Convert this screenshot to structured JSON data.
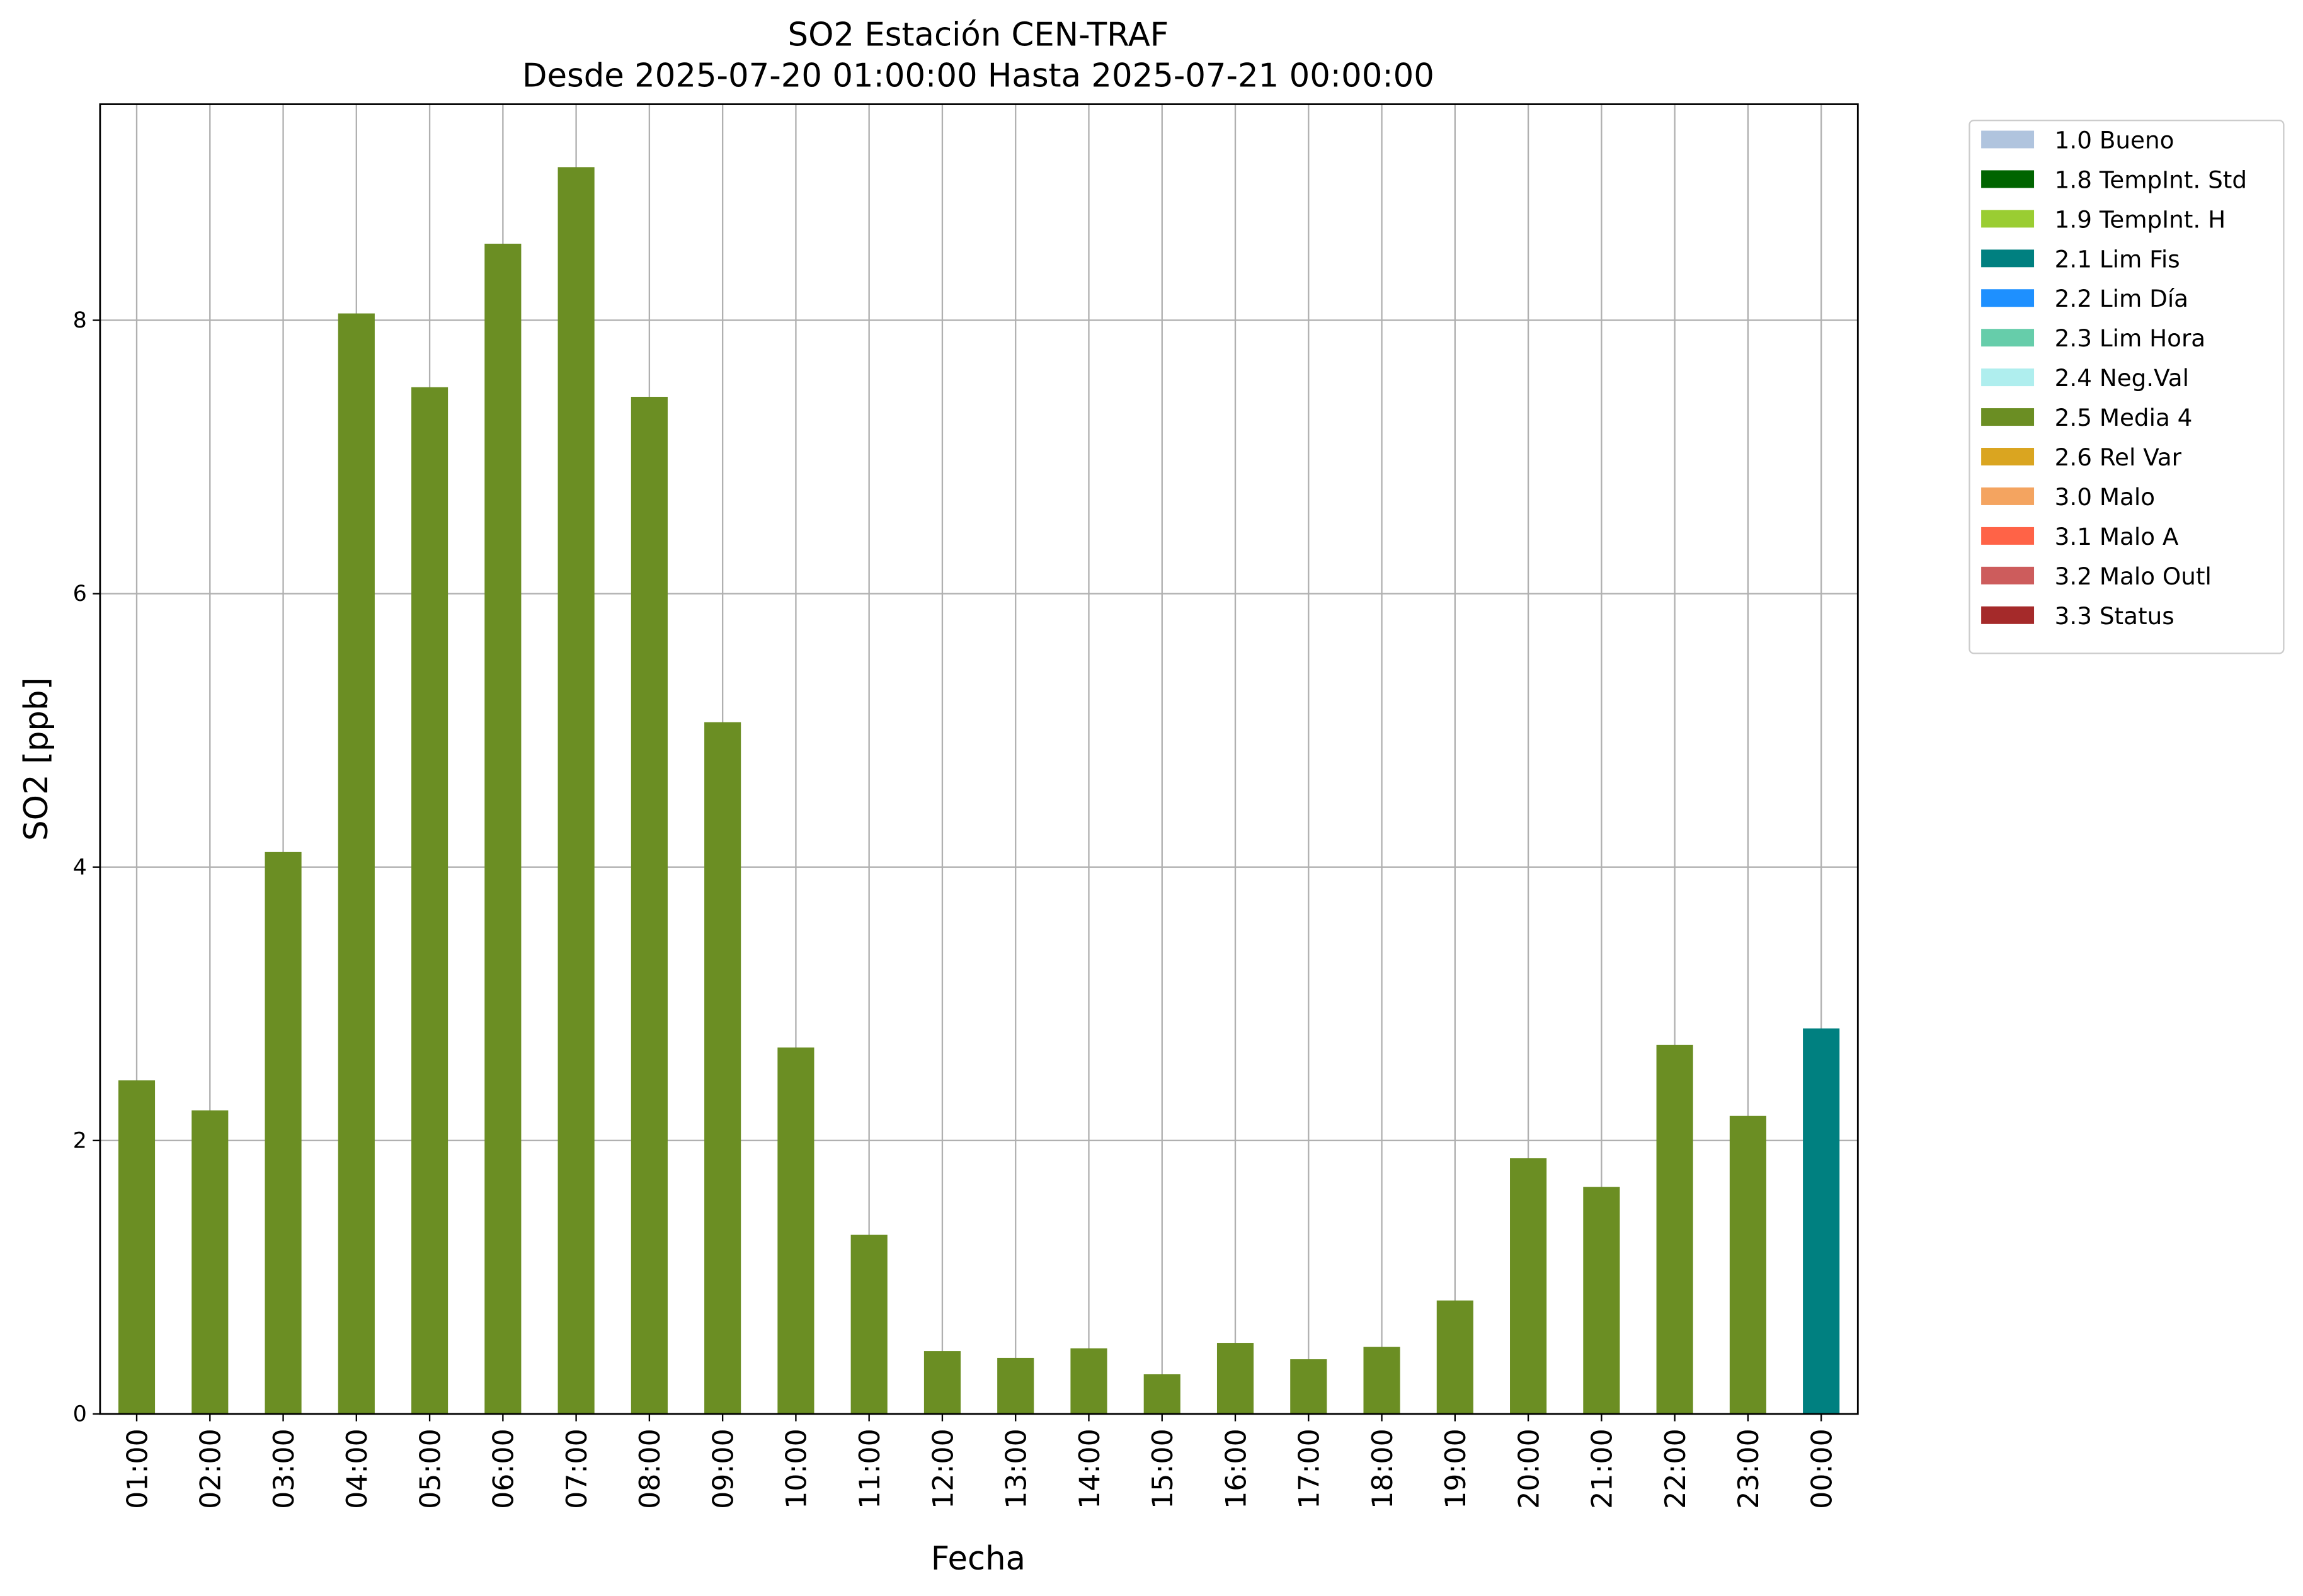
{
  "chart_data": {
    "type": "stacked_bar",
    "title": "SO2 Estación CEN-TRAF",
    "subtitle": "Desde 2025-07-20 01:00:00 Hasta 2025-07-21 00:00:00",
    "x_label": "Fecha",
    "y_label": "SO2 [ppb]",
    "categories": [
      "01:00",
      "02:00",
      "03:00",
      "04:00",
      "05:00",
      "06:00",
      "07:00",
      "08:00",
      "09:00",
      "10:00",
      "11:00",
      "12:00",
      "13:00",
      "14:00",
      "15:00",
      "16:00",
      "17:00",
      "18:00",
      "19:00",
      "20:00",
      "21:00",
      "22:00",
      "23:00",
      "00:00"
    ],
    "ylim": [
      0,
      9.58
    ],
    "yticks": [
      0,
      2,
      4,
      6,
      8
    ],
    "grid": true,
    "legend": "outside-right",
    "series": [
      {
        "name": "1.0 Bueno",
        "color": "#b0c4de",
        "values": [
          null,
          null,
          null,
          null,
          null,
          null,
          null,
          null,
          null,
          null,
          null,
          null,
          null,
          null,
          null,
          null,
          null,
          null,
          null,
          null,
          null,
          null,
          null,
          null
        ]
      },
      {
        "name": "1.8 TempInt. Std",
        "color": "#006400",
        "values": [
          null,
          null,
          null,
          null,
          null,
          null,
          null,
          null,
          null,
          null,
          null,
          null,
          null,
          null,
          null,
          null,
          null,
          null,
          null,
          null,
          null,
          null,
          null,
          null
        ]
      },
      {
        "name": "1.9 TempInt. H",
        "color": "#9acd32",
        "values": [
          null,
          null,
          null,
          null,
          null,
          null,
          null,
          null,
          null,
          null,
          null,
          null,
          null,
          null,
          null,
          null,
          null,
          null,
          null,
          null,
          null,
          null,
          null,
          null
        ]
      },
      {
        "name": "2.1 Lim Fis",
        "color": "#008080",
        "values": [
          null,
          null,
          null,
          null,
          null,
          null,
          null,
          null,
          null,
          null,
          null,
          null,
          null,
          null,
          null,
          null,
          null,
          null,
          null,
          null,
          null,
          null,
          null,
          2.82
        ]
      },
      {
        "name": "2.2 Lim Día",
        "color": "#1e90ff",
        "values": [
          null,
          null,
          null,
          null,
          null,
          null,
          null,
          null,
          null,
          null,
          null,
          null,
          null,
          null,
          null,
          null,
          null,
          null,
          null,
          null,
          null,
          null,
          null,
          null
        ]
      },
      {
        "name": "2.3 Lim Hora",
        "color": "#66cdaa",
        "values": [
          null,
          null,
          null,
          null,
          null,
          null,
          null,
          null,
          null,
          null,
          null,
          null,
          null,
          null,
          null,
          null,
          null,
          null,
          null,
          null,
          null,
          null,
          null,
          null
        ]
      },
      {
        "name": "2.4 Neg.Val",
        "color": "#afeeee",
        "values": [
          null,
          null,
          null,
          null,
          null,
          null,
          null,
          null,
          null,
          null,
          null,
          null,
          null,
          null,
          null,
          null,
          null,
          null,
          null,
          null,
          null,
          null,
          null,
          null
        ]
      },
      {
        "name": "2.5 Media 4",
        "color": "#6b8e23",
        "values": [
          2.44,
          2.22,
          4.11,
          8.05,
          7.51,
          8.56,
          9.12,
          7.44,
          5.06,
          2.68,
          1.31,
          0.46,
          0.41,
          0.48,
          0.29,
          0.52,
          0.4,
          0.49,
          0.83,
          1.87,
          1.66,
          2.7,
          2.18,
          null
        ]
      },
      {
        "name": "2.6 Rel Var",
        "color": "#daa520",
        "values": [
          null,
          null,
          null,
          null,
          null,
          null,
          null,
          null,
          null,
          null,
          null,
          null,
          null,
          null,
          null,
          null,
          null,
          null,
          null,
          null,
          null,
          null,
          null,
          null
        ]
      },
      {
        "name": "3.0 Malo",
        "color": "#f4a460",
        "values": [
          null,
          null,
          null,
          null,
          null,
          null,
          null,
          null,
          null,
          null,
          null,
          null,
          null,
          null,
          null,
          null,
          null,
          null,
          null,
          null,
          null,
          null,
          null,
          null
        ]
      },
      {
        "name": "3.1 Malo A",
        "color": "#ff6347",
        "values": [
          null,
          null,
          null,
          null,
          null,
          null,
          null,
          null,
          null,
          null,
          null,
          null,
          null,
          null,
          null,
          null,
          null,
          null,
          null,
          null,
          null,
          null,
          null,
          null
        ]
      },
      {
        "name": "3.2 Malo Outl",
        "color": "#cd5c5c",
        "values": [
          null,
          null,
          null,
          null,
          null,
          null,
          null,
          null,
          null,
          null,
          null,
          null,
          null,
          null,
          null,
          null,
          null,
          null,
          null,
          null,
          null,
          null,
          null,
          null
        ]
      },
      {
        "name": "3.3 Status",
        "color": "#a52a2a",
        "values": [
          null,
          null,
          null,
          null,
          null,
          null,
          null,
          null,
          null,
          null,
          null,
          null,
          null,
          null,
          null,
          null,
          null,
          null,
          null,
          null,
          null,
          null,
          null,
          null
        ]
      }
    ]
  }
}
